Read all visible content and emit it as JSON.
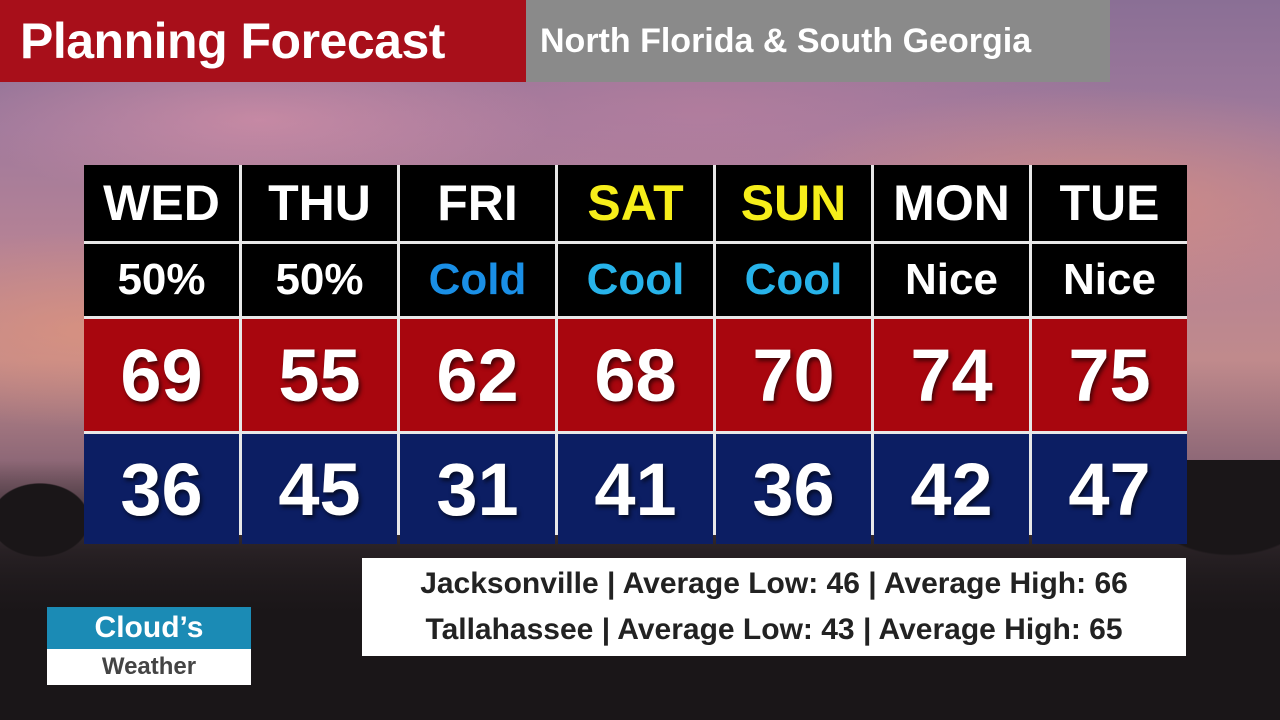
{
  "header": {
    "title": "Planning Forecast",
    "region": "North Florida & South Georgia"
  },
  "colors": {
    "title_bg": "#a80f1a",
    "region_bg": "#8a8a8a",
    "high_bg": "#a8060e",
    "low_bg": "#0c1e63",
    "weekend_text": "#f6ee1a",
    "cold_text": "#1a8fe6",
    "cool_text": "#27b3ea"
  },
  "forecast": [
    {
      "day": "WED",
      "condition": "50%",
      "high": "69",
      "low": "36"
    },
    {
      "day": "THU",
      "condition": "50%",
      "high": "55",
      "low": "45"
    },
    {
      "day": "FRI",
      "condition": "Cold",
      "high": "62",
      "low": "31"
    },
    {
      "day": "SAT",
      "condition": "Cool",
      "high": "68",
      "low": "41"
    },
    {
      "day": "SUN",
      "condition": "Cool",
      "high": "70",
      "low": "36"
    },
    {
      "day": "MON",
      "condition": "Nice",
      "high": "74",
      "low": "42"
    },
    {
      "day": "TUE",
      "condition": "Nice",
      "high": "75",
      "low": "47"
    }
  ],
  "averages": [
    "Jacksonville | Average Low: 46 | Average High: 66",
    "Tallahassee | Average Low: 43 | Average High: 65"
  ],
  "logo": {
    "top": "Cloud’s",
    "bottom": "Weather"
  }
}
